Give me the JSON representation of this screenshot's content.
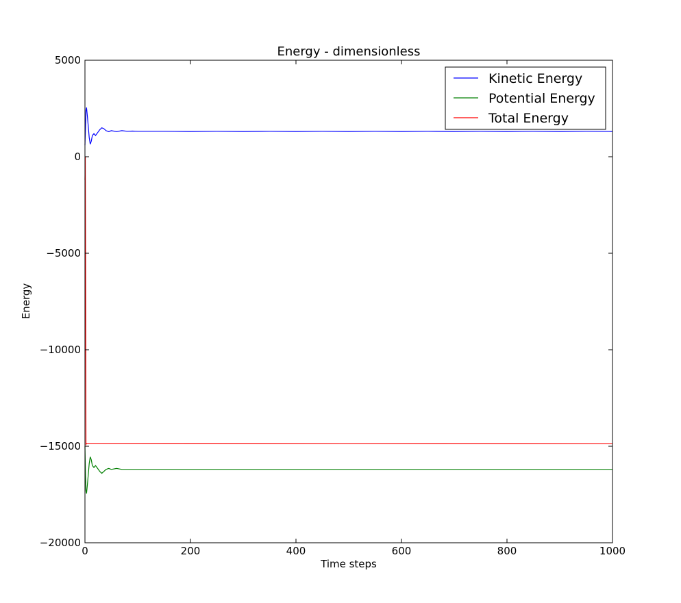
{
  "chart_data": {
    "type": "line",
    "title": "Energy - dimensionless",
    "xlabel": "Time steps",
    "ylabel": "Energy",
    "xlim": [
      0,
      1000
    ],
    "ylim": [
      -20000,
      5000
    ],
    "xticks": [
      0,
      200,
      400,
      600,
      800,
      1000
    ],
    "xtick_labels": [
      "0",
      "200",
      "400",
      "600",
      "800",
      "1000"
    ],
    "yticks": [
      5000,
      0,
      -5000,
      -10000,
      -15000,
      -20000
    ],
    "ytick_labels": [
      "5000",
      "0",
      "−5000",
      "−10000",
      "−15000",
      "−20000"
    ],
    "grid": false,
    "legend_position": "top-right",
    "series": [
      {
        "name": "Kinetic Energy",
        "color": "#0000ff",
        "x": [
          0,
          1,
          2,
          3,
          5,
          8,
          10,
          12,
          14,
          17,
          20,
          24,
          28,
          32,
          36,
          40,
          45,
          50,
          60,
          70,
          80,
          90,
          100,
          150,
          200,
          250,
          300,
          350,
          400,
          450,
          500,
          550,
          600,
          650,
          700,
          750,
          800,
          850,
          900,
          950,
          1000
        ],
        "y": [
          600,
          1500,
          2400,
          2550,
          2000,
          1000,
          650,
          800,
          1100,
          1200,
          1100,
          1250,
          1400,
          1500,
          1450,
          1350,
          1300,
          1350,
          1300,
          1350,
          1320,
          1330,
          1320,
          1320,
          1310,
          1320,
          1310,
          1320,
          1310,
          1320,
          1310,
          1320,
          1310,
          1320,
          1310,
          1320,
          1310,
          1320,
          1310,
          1320,
          1310
        ]
      },
      {
        "name": "Potential Energy",
        "color": "#007f00",
        "x": [
          0,
          1,
          2,
          3,
          5,
          8,
          10,
          12,
          14,
          17,
          20,
          24,
          28,
          32,
          36,
          40,
          45,
          50,
          60,
          70,
          80,
          90,
          100,
          150,
          200,
          250,
          300,
          350,
          400,
          450,
          500,
          550,
          600,
          650,
          700,
          750,
          800,
          850,
          900,
          950,
          1000
        ],
        "y": [
          -15000,
          -16500,
          -17300,
          -17450,
          -16900,
          -15900,
          -15550,
          -15700,
          -16000,
          -16100,
          -16000,
          -16150,
          -16300,
          -16400,
          -16300,
          -16200,
          -16150,
          -16200,
          -16150,
          -16200,
          -16200,
          -16200,
          -16200,
          -16200,
          -16200,
          -16200,
          -16200,
          -16200,
          -16200,
          -16200,
          -16200,
          -16200,
          -16200,
          -16200,
          -16200,
          -16200,
          -16200,
          -16200,
          -16200,
          -16200,
          -16200
        ]
      },
      {
        "name": "Total Energy",
        "color": "#ff0000",
        "x": [
          0,
          0.6,
          1.2,
          2,
          3,
          1000
        ],
        "y": [
          -1200,
          0,
          -5000,
          -14900,
          -14850,
          -14870
        ]
      }
    ]
  }
}
